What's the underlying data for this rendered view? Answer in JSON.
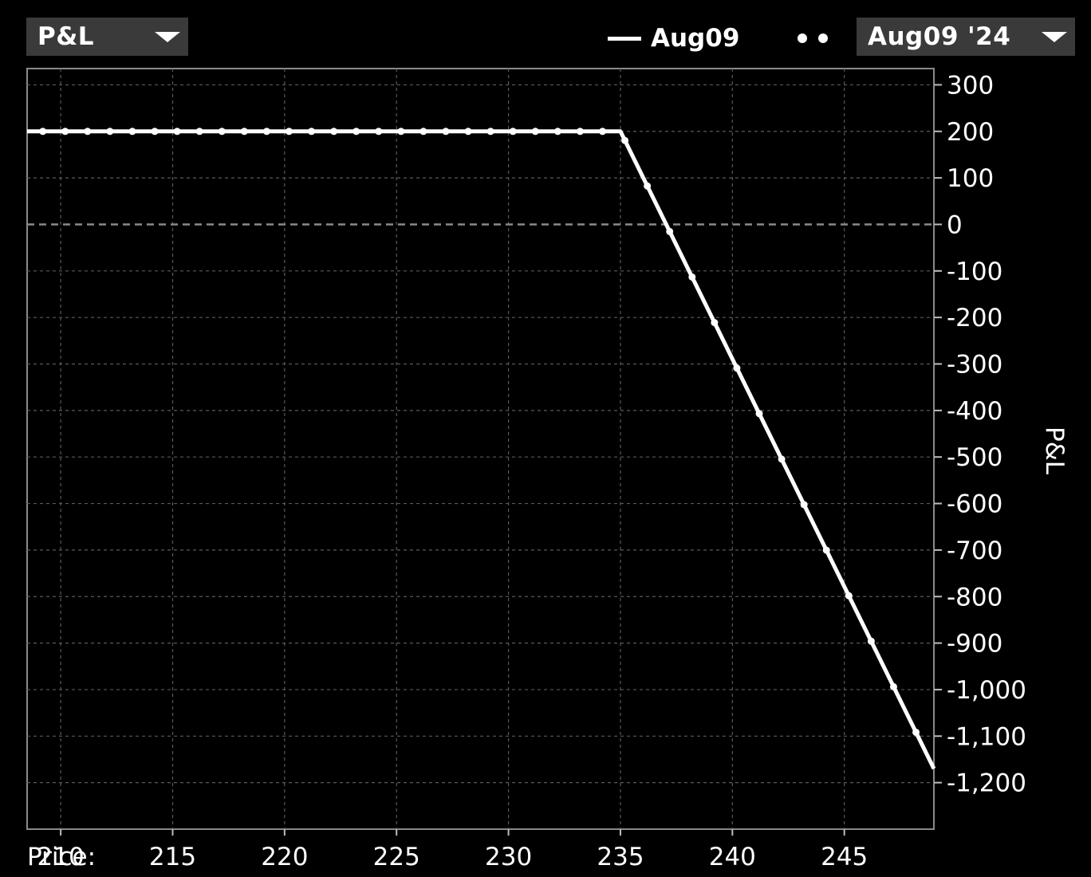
{
  "controls": {
    "metric_dropdown": {
      "label": "P&L"
    },
    "date_dropdown": {
      "label": "Aug09 '24"
    }
  },
  "legend": {
    "line_label": "Aug09"
  },
  "colors": {
    "background": "#000000",
    "line": "#ffffff",
    "grid": "#5a5a5a",
    "dropdown_bg": "#3a3a3a"
  },
  "chart_data": {
    "type": "line",
    "title": "",
    "xlabel": "Price:",
    "ylabel": "P&L",
    "xlim": [
      208.5,
      249
    ],
    "ylim": [
      -1300,
      335
    ],
    "x_ticks": [
      210,
      215,
      220,
      225,
      230,
      235,
      240,
      245
    ],
    "x_tick_labels": [
      "210",
      "215",
      "220",
      "225",
      "230",
      "235",
      "240",
      "245"
    ],
    "y_ticks": [
      300,
      200,
      100,
      0,
      -100,
      -200,
      -300,
      -400,
      -500,
      -600,
      -700,
      -800,
      -900,
      -1000,
      -1100,
      -1200
    ],
    "y_tick_labels": [
      "300",
      "200",
      "100",
      "0",
      "-100",
      "-200",
      "-300",
      "-400",
      "-500",
      "-600",
      "-700",
      "-800",
      "-900",
      "-1,000",
      "-1,100",
      "-1,200"
    ],
    "grid": true,
    "zero_line": true,
    "series": [
      {
        "name": "Aug09",
        "style": "solid",
        "x": [
          208.5,
          235,
          249
        ],
        "y": [
          200,
          200,
          -1170
        ]
      },
      {
        "name": "",
        "style": "dotted",
        "x": [
          208.5,
          235,
          249
        ],
        "y": [
          200,
          200,
          -1170
        ]
      }
    ]
  }
}
